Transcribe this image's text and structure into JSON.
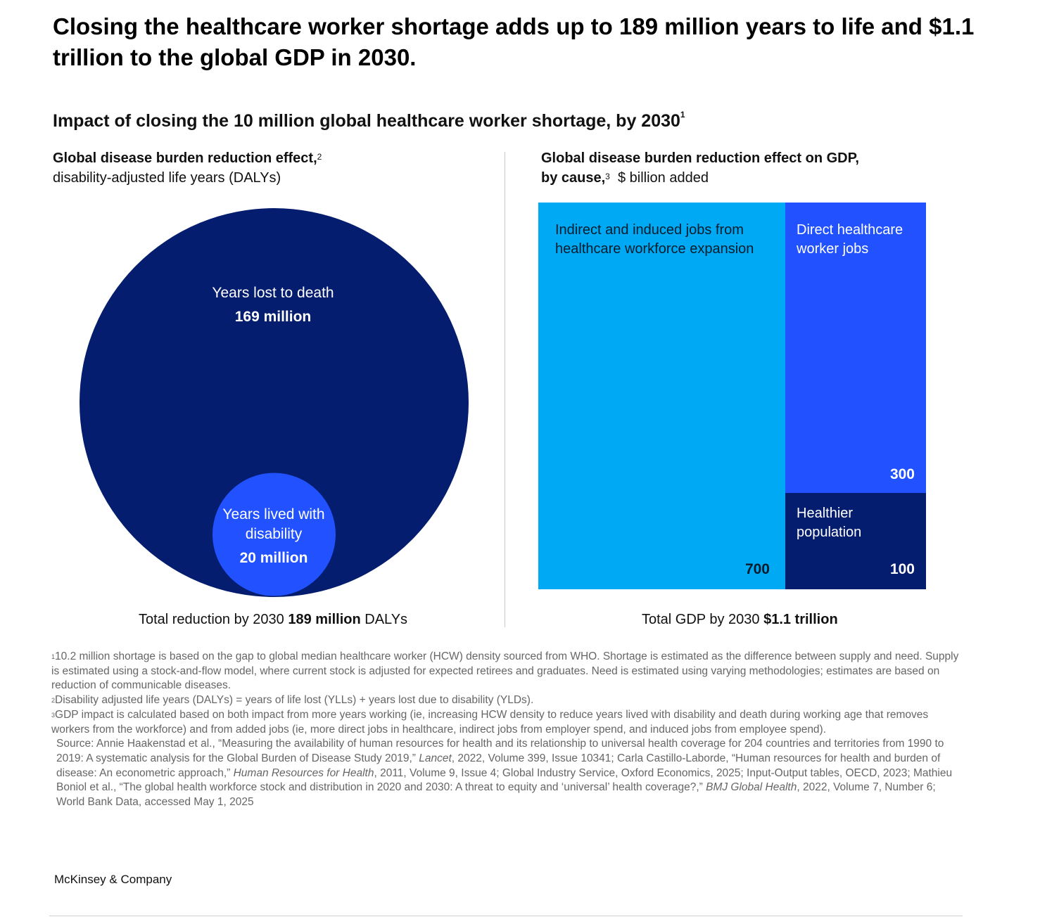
{
  "title": "Closing the healthcare worker shortage adds up to 189 million years to life and $1.1 trillion to the global GDP in 2030.",
  "subtitle": "Impact of closing the 10 million global healthcare worker shortage, by 2030",
  "subtitle_footnote": "1",
  "left_header": {
    "bold": "Global disease burden reduction effect,",
    "footnote": "2",
    "normal": "disability-adjusted life years (DALYs)"
  },
  "right_header": {
    "bold_line1": "Global disease burden reduction effect on GDP,",
    "bold_line2": "by cause,",
    "footnote": "3",
    "normal": "$ billion added"
  },
  "chart_data": [
    {
      "type": "nested-circles",
      "title": "Global disease burden reduction effect, disability-adjusted life years (DALYs)",
      "unit": "million DALYs",
      "series": [
        {
          "name": "Years lost to death",
          "value": 169,
          "label": "169 million",
          "color": "#051d6e"
        },
        {
          "name": "Years lived with disability",
          "value": 20,
          "label": "20 million",
          "color": "#2251ff"
        }
      ],
      "total": {
        "prefix": "Total reduction by 2030",
        "value": "189 million",
        "suffix": "DALYs"
      }
    },
    {
      "type": "treemap",
      "title": "Global disease burden reduction effect on GDP, by cause, $ billion added",
      "unit": "$ billion",
      "series": [
        {
          "name": "Indirect and induced jobs from healthcare workforce expansion",
          "value": 700,
          "color": "#00a9f4"
        },
        {
          "name": "Direct healthcare worker jobs",
          "value": 300,
          "color": "#2251ff"
        },
        {
          "name": "Healthier population",
          "value": 100,
          "color": "#051d6e"
        }
      ],
      "total": {
        "prefix": "Total GDP by 2030",
        "value": "$1.1 trillion"
      }
    }
  ],
  "footnotes": {
    "n1": {
      "mark": "1",
      "text": "10.2 million shortage is based on the gap to global median healthcare worker (HCW) density sourced from WHO. Shortage is estimated as the difference between supply and need. Supply is estimated using a stock-and-flow model, where current stock is adjusted for expected retirees and graduates. Need is estimated using varying methodologies; estimates are based on reduction of communicable diseases."
    },
    "n2": {
      "mark": "2",
      "text": "Disability adjusted life years (DALYs) = years of life lost (YLLs) + years lost due to disability (YLDs)."
    },
    "n3": {
      "mark": "3",
      "text": "GDP impact is calculated based on both impact from more years working (ie, increasing HCW density to reduce years lived with disability and death during working age that removes workers from the workforce) and from added jobs (ie, more direct jobs in healthcare, indirect jobs from employer spend, and induced jobs from employee spend)."
    },
    "source": {
      "p1": "Source: Annie Haakenstad et al., “Measuring the availability of human resources for health and its relationship to universal health coverage for 204 countries and territories from 1990 to 2019: A systematic analysis for the Global Burden of Disease Study 2019,” ",
      "i1": "Lancet",
      "p2": ", 2022, Volume 399, Issue 10341; Carla Castillo-Laborde, “Human resources for health and burden of disease: An econometric approach,” ",
      "i2": "Human Resources for Health",
      "p3": ", 2011, Volume 9, Issue 4; Global Industry Service, Oxford Economics, 2025; Input-Output tables, OECD, 2023; Mathieu Boniol et al., “The global health workforce stock and distribution in 2020 and 2030: A threat to equity and ‘universal’ health coverage?,” ",
      "i3": "BMJ Global Health",
      "p4": ", 2022, Volume 7, Number 6; World Bank Data, accessed May 1, 2025"
    }
  },
  "brand": "McKinsey & Company"
}
